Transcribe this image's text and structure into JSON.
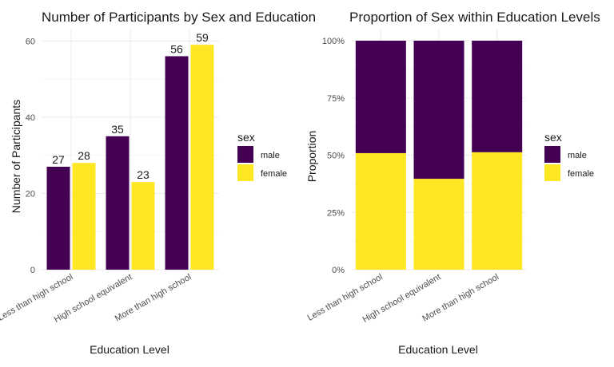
{
  "colors": {
    "male": "#440154",
    "female": "#FDE725",
    "grid_major": "#ebebeb",
    "grid_minor": "#f5f5f5"
  },
  "chart_data": [
    {
      "type": "bar",
      "title": "Number of Participants by Sex and Education",
      "xlabel": "Education Level",
      "ylabel": "Number of Participants",
      "categories": [
        "Less than high school",
        "High school equivalent",
        "More than high school"
      ],
      "series": [
        {
          "name": "male",
          "values": [
            27,
            35,
            56
          ]
        },
        {
          "name": "female",
          "values": [
            28,
            23,
            59
          ]
        }
      ],
      "ylim": [
        0,
        63
      ],
      "yticks": [
        0,
        20,
        40,
        60
      ],
      "ytick_labels": [
        "0",
        "20",
        "40",
        "60"
      ],
      "legend": {
        "title": "sex",
        "position": "right"
      },
      "grid": true
    },
    {
      "type": "bar",
      "stacked": true,
      "normalized": true,
      "title": "Proportion of Sex within Education Levels",
      "xlabel": "Education Level",
      "ylabel": "Proportion",
      "categories": [
        "Less than high school",
        "High school equivalent",
        "More than high school"
      ],
      "series": [
        {
          "name": "male",
          "values": [
            0.491,
            0.603,
            0.487
          ]
        },
        {
          "name": "female",
          "values": [
            0.509,
            0.397,
            0.513
          ]
        }
      ],
      "ylim": [
        0,
        1
      ],
      "yticks": [
        0,
        0.25,
        0.5,
        0.75,
        1
      ],
      "ytick_labels": [
        "0%",
        "25%",
        "50%",
        "75%",
        "100%"
      ],
      "legend": {
        "title": "sex",
        "position": "right"
      },
      "grid": true
    }
  ]
}
